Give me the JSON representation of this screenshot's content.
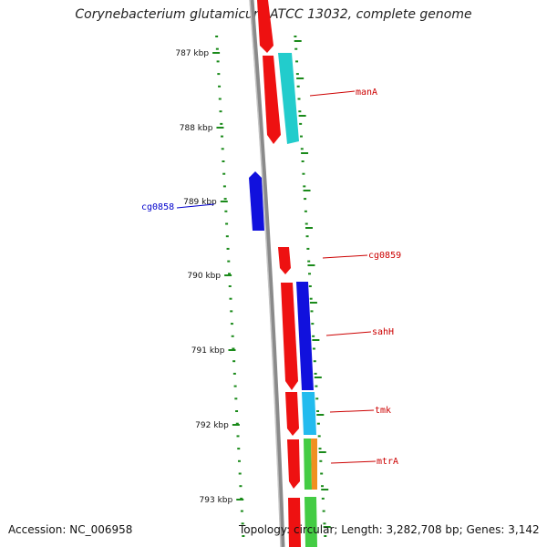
{
  "title": "Corynebacterium glutamicum ATCC 13032, complete genome",
  "footer": {
    "accession": "Accession: NC_006958",
    "summary": "Topology: circular; Length: 3,282,708 bp; Genes: 3,142"
  },
  "scale": {
    "labels": [
      "787 kbp",
      "788 kbp",
      "789 kbp",
      "790 kbp",
      "791 kbp",
      "792 kbp",
      "793 kbp"
    ],
    "tick_color": "#1a8a1a"
  },
  "genes": [
    {
      "name": "manA",
      "color": "#cc0000"
    },
    {
      "name": "cg0858",
      "color": "#0000cc"
    },
    {
      "name": "cg0859",
      "color": "#cc0000"
    },
    {
      "name": "sahH",
      "color": "#cc0000"
    },
    {
      "name": "tmk",
      "color": "#cc0000"
    },
    {
      "name": "mtrA",
      "color": "#cc0000"
    }
  ],
  "colors": {
    "red": "#ee1111",
    "cyan": "#22cccc",
    "blue": "#1111dd",
    "skyblue": "#22bbee",
    "green": "#44cc44",
    "orange": "#f09020",
    "backbone": "#888888"
  }
}
